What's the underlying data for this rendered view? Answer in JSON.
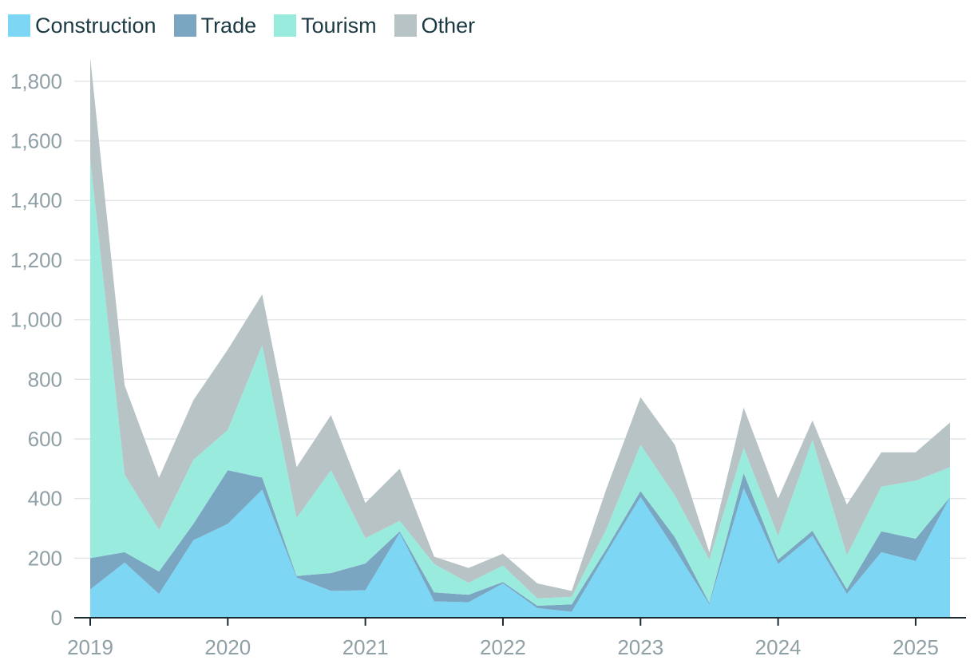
{
  "chart_data": {
    "type": "area",
    "stacked": true,
    "x": [
      "2019 Q1",
      "2019 Q2",
      "2019 Q3",
      "2019 Q4",
      "2020 Q1",
      "2020 Q2",
      "2020 Q3",
      "2020 Q4",
      "2021 Q1",
      "2021 Q2",
      "2021 Q3",
      "2021 Q4",
      "2022 Q1",
      "2022 Q2",
      "2022 Q3",
      "2022 Q4",
      "2023 Q1",
      "2023 Q2",
      "2023 Q3",
      "2023 Q4",
      "2024 Q1",
      "2024 Q2",
      "2024 Q3",
      "2024 Q4",
      "2025 Q1",
      "2025 Q2"
    ],
    "series": [
      {
        "name": "Construction",
        "color": "#7dd6f3",
        "values": [
          95,
          185,
          80,
          260,
          315,
          430,
          135,
          90,
          92,
          285,
          55,
          52,
          115,
          32,
          20,
          215,
          405,
          230,
          45,
          435,
          180,
          275,
          80,
          220,
          190,
          405
        ]
      },
      {
        "name": "Trade",
        "color": "#7aa6c2",
        "values": [
          105,
          35,
          75,
          55,
          180,
          40,
          5,
          60,
          90,
          5,
          30,
          25,
          5,
          8,
          25,
          15,
          20,
          40,
          5,
          50,
          15,
          17,
          15,
          70,
          75,
          0
        ]
      },
      {
        "name": "Tourism",
        "color": "#99ebdd",
        "values": [
          1340,
          260,
          140,
          215,
          135,
          445,
          195,
          345,
          85,
          35,
          95,
          40,
          55,
          25,
          25,
          65,
          155,
          140,
          145,
          85,
          80,
          305,
          115,
          150,
          195,
          100
        ]
      },
      {
        "name": "Other",
        "color": "#b8c3c6",
        "values": [
          340,
          300,
          175,
          200,
          270,
          170,
          170,
          185,
          118,
          175,
          25,
          50,
          40,
          50,
          20,
          135,
          160,
          170,
          25,
          135,
          125,
          65,
          170,
          115,
          95,
          150
        ]
      }
    ],
    "ylim": [
      0,
      1880
    ],
    "yticks": [
      "0",
      "200",
      "400",
      "600",
      "800",
      "1,000",
      "1,200",
      "1,400",
      "1,600",
      "1,800"
    ],
    "ytick_values": [
      0,
      200,
      400,
      600,
      800,
      1000,
      1200,
      1400,
      1600,
      1800
    ],
    "xticks": [
      "2019",
      "2020",
      "2021",
      "2022",
      "2023",
      "2024",
      "2025"
    ],
    "xtick_index": [
      0,
      4,
      8,
      12,
      16,
      20,
      24
    ],
    "grid": true,
    "legend": "top-left",
    "title": "",
    "xlabel": "",
    "ylabel": ""
  }
}
